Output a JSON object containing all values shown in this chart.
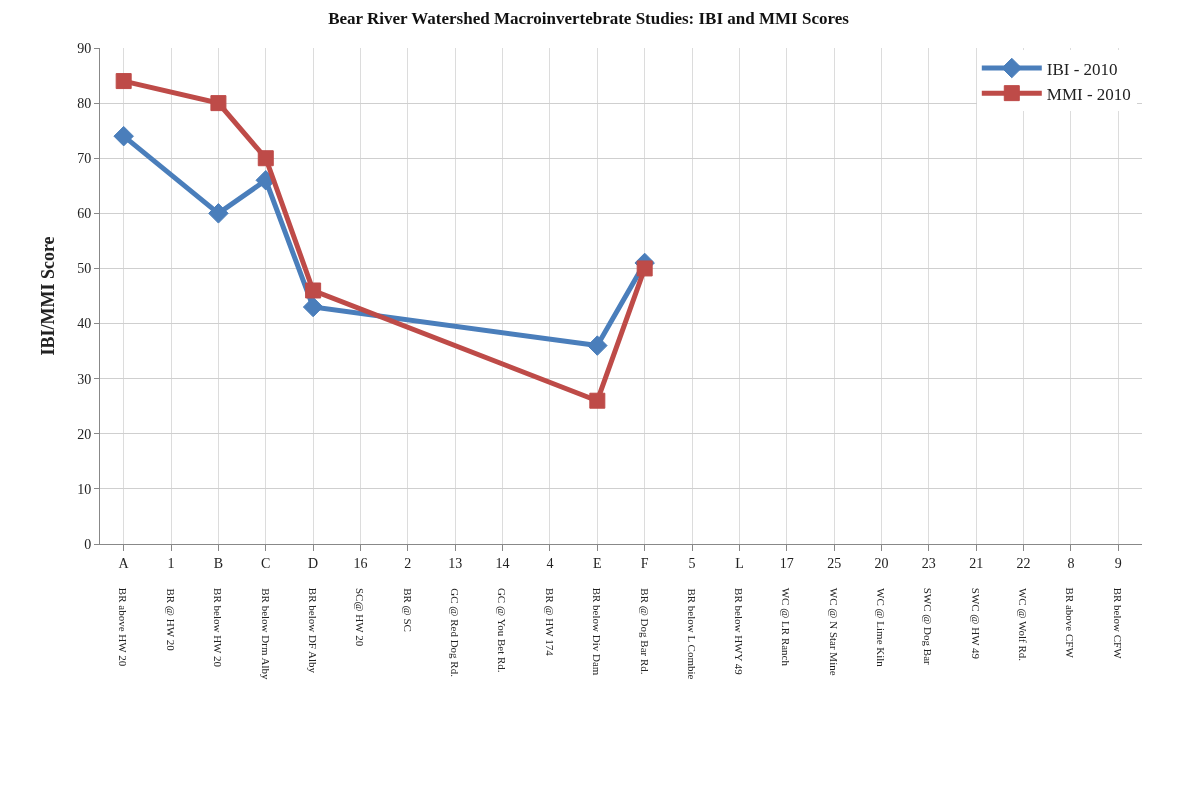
{
  "chart_data": {
    "type": "line",
    "title": "Bear River Watershed Macroinvertebrate Studies: IBI and MMI Scores",
    "ylabel": "IBI/MMI Score",
    "categories": [
      "A\nBR above HW 20",
      "1\nBR @ HW 20",
      "B\nBR below HW 20",
      "C\nBR below Drm Alby",
      "D\nBR below DF Alby",
      "16\nSC@ HW 20",
      "2\nBR @ SC",
      "13\nGC @ Red Dog Rd.",
      "14\nGC @ You Bet Rd.",
      "4\nBR @ HW 174",
      "E\nBR below Div Dam",
      "F\nBR @ Dog Bar Rd.",
      "5\nBR below L Combie",
      "L\nBR below HWY 49",
      "17\nWC @ LR Ranch",
      "25\nWC @ N Star Mine",
      "20\nWC @ Lime Kiln",
      "23\nSWC @ Dog Bar",
      "21\nSWC @ HW 49",
      "22\nWC @ Wolf Rd.",
      "8\nBR above CFW",
      "9\nBR below CFW"
    ],
    "series": [
      {
        "name": "IBI - 2010",
        "color": "#4a7ebb",
        "marker": "diamond",
        "values": [
          74,
          null,
          60,
          66,
          43,
          null,
          null,
          null,
          null,
          null,
          36,
          51,
          null,
          null,
          null,
          null,
          null,
          null,
          null,
          null,
          null,
          null
        ]
      },
      {
        "name": "MMI - 2010",
        "color": "#be4b48",
        "marker": "square",
        "values": [
          84,
          null,
          80,
          70,
          46,
          null,
          null,
          null,
          null,
          null,
          26,
          50,
          null,
          null,
          null,
          null,
          null,
          null,
          null,
          null,
          null,
          null
        ]
      }
    ],
    "ylim": [
      0,
      90
    ],
    "yticks": [
      0,
      10,
      20,
      30,
      40,
      50,
      60,
      70,
      80,
      90
    ],
    "grid": true,
    "legend": "top right"
  }
}
